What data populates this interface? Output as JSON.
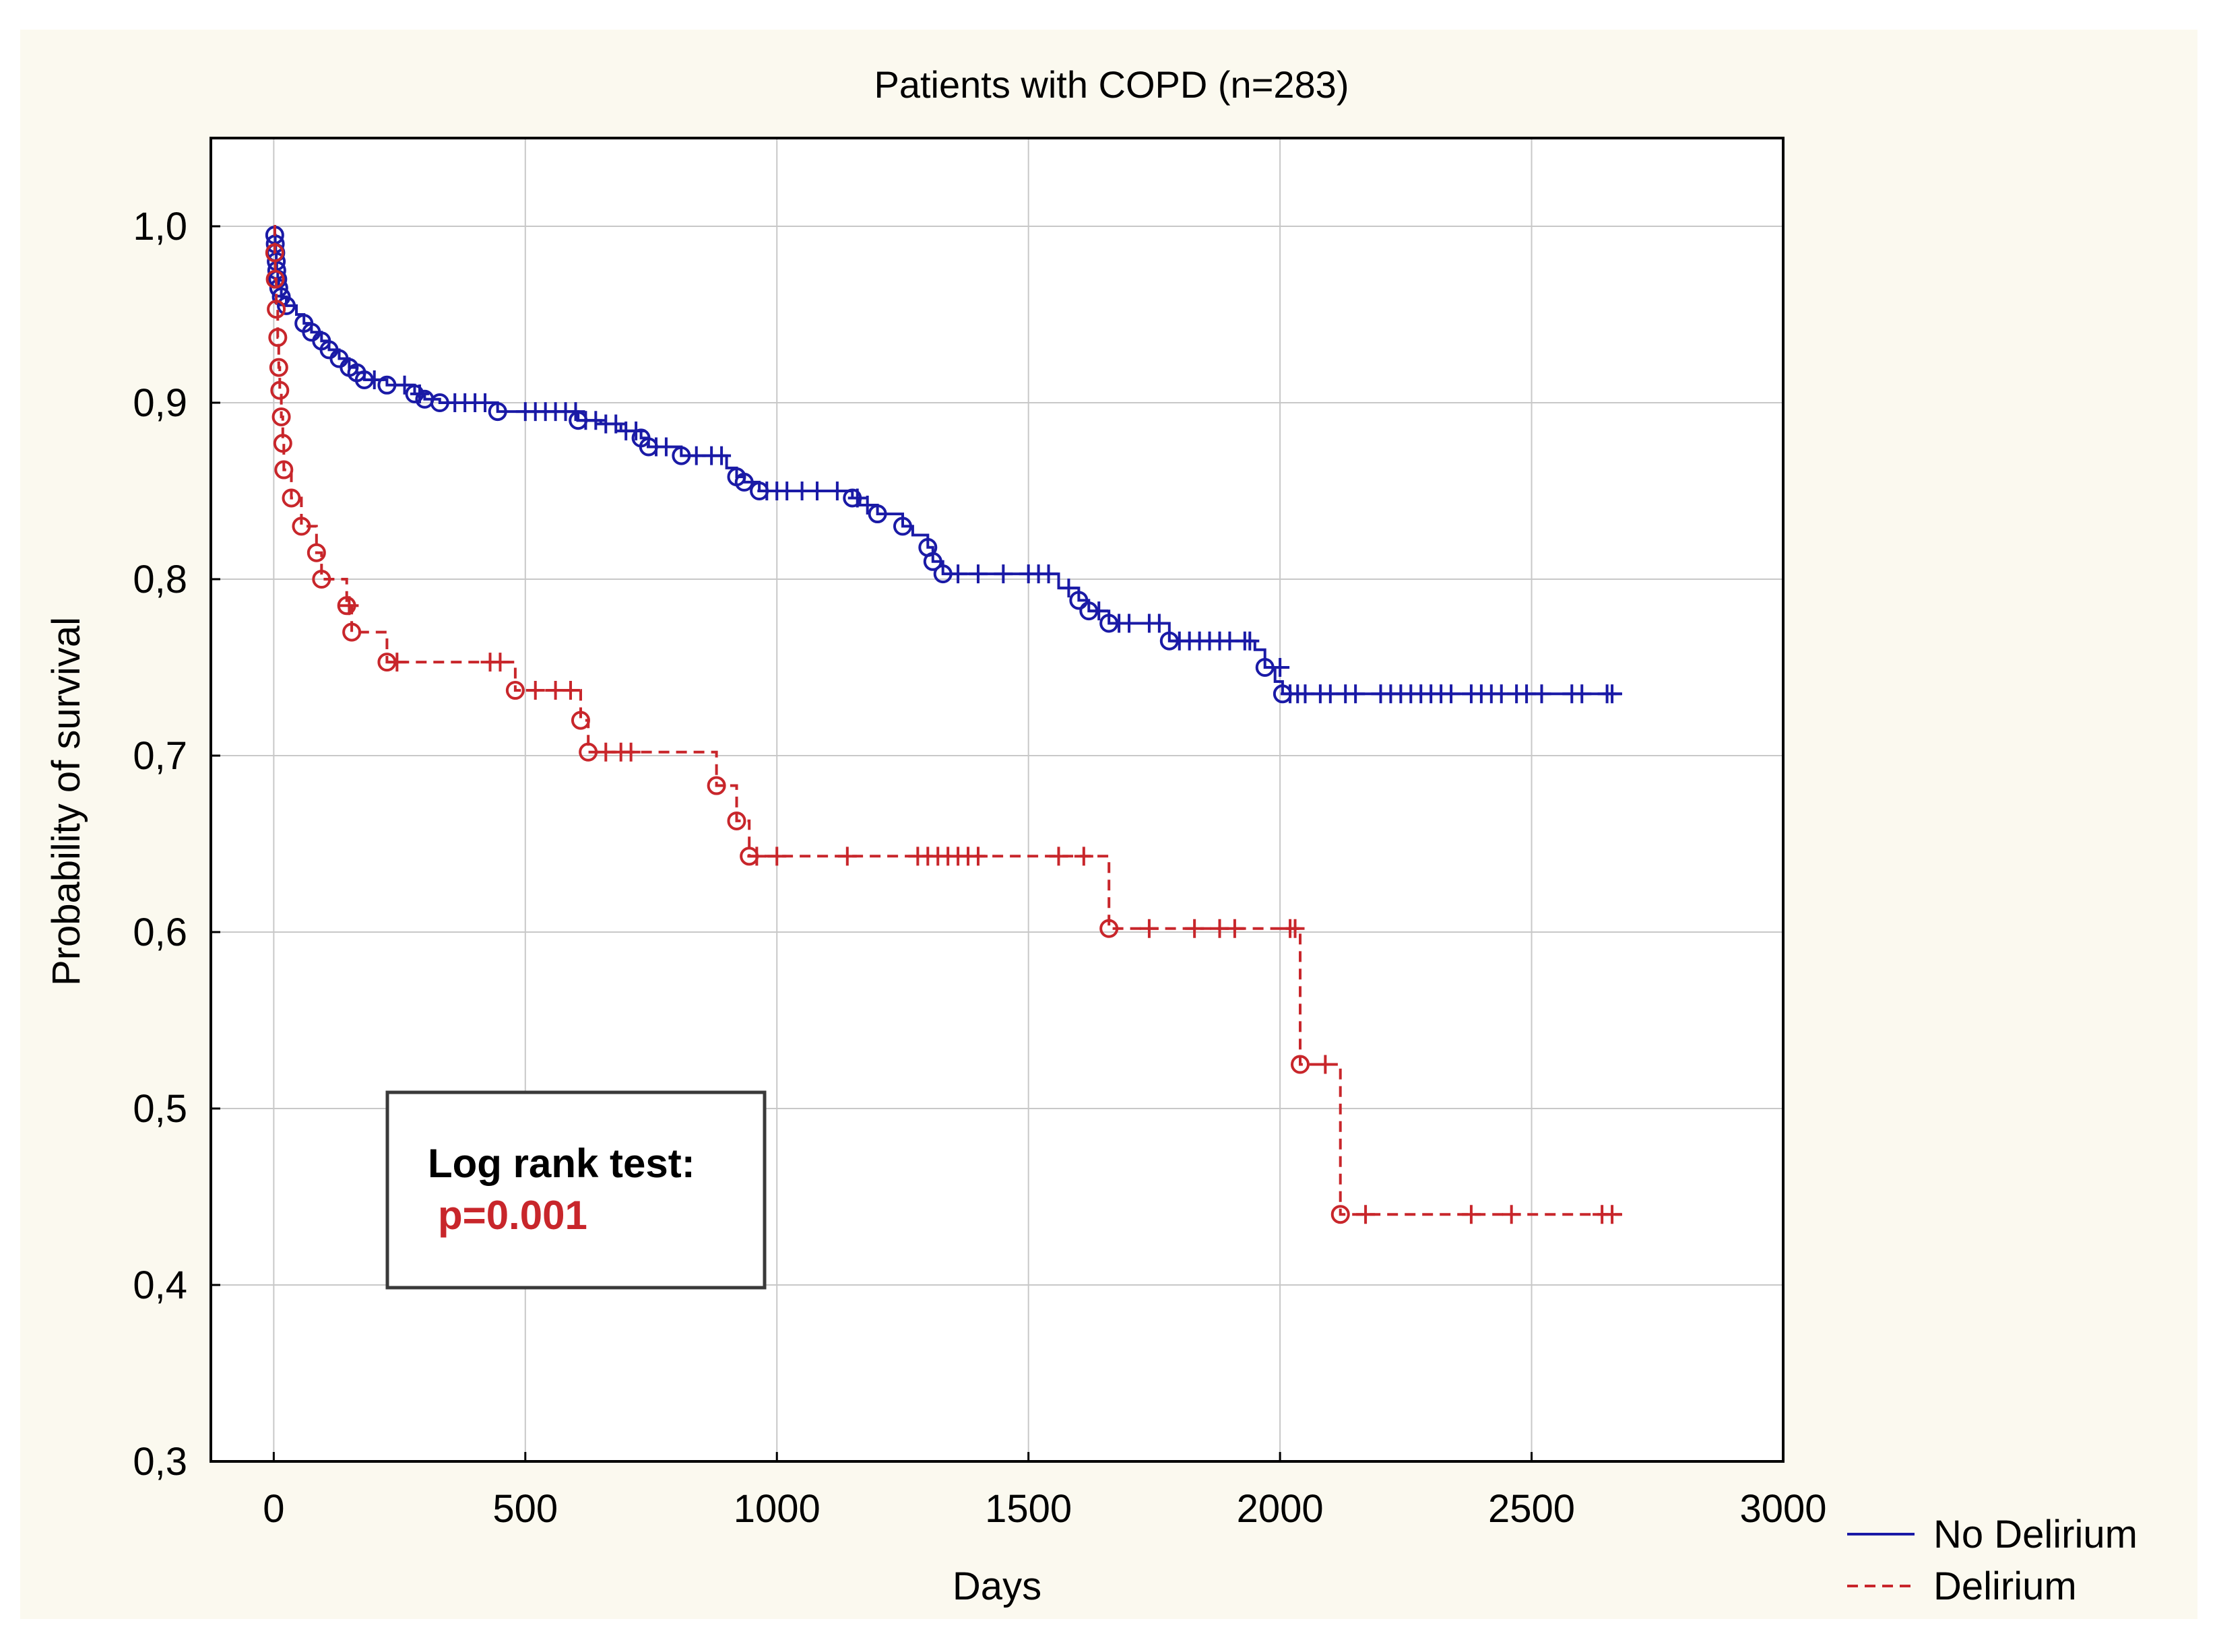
{
  "colors": {
    "outer_background": "#fbf9ef",
    "plot_background": "#ffffff",
    "grid": "#c8c8c8",
    "axis": "#000000",
    "no_delirium": "#1a1aa6",
    "delirium": "#c8262b",
    "pvalue": "#c8262b"
  },
  "chart_data": {
    "type": "line",
    "subtype": "kaplan-meier",
    "title": "Patients with COPD (n=283)",
    "xlabel": "Days",
    "ylabel": "Probability of survival",
    "xlim": [
      -125,
      3000
    ],
    "ylim": [
      0.3,
      1.05
    ],
    "xticks": [
      0,
      500,
      1000,
      1500,
      2000,
      2500,
      3000
    ],
    "xtick_labels": [
      "0",
      "500",
      "1000",
      "1500",
      "2000",
      "2500",
      "3000"
    ],
    "yticks": [
      0.3,
      0.4,
      0.5,
      0.6,
      0.7,
      0.8,
      0.9,
      1.0
    ],
    "ytick_labels": [
      "0,3",
      "0,4",
      "0,5",
      "0,6",
      "0,7",
      "0,8",
      "0,9",
      "1,0"
    ],
    "grid": true,
    "legend_position": "bottom-right outside",
    "annotation": {
      "heading": "Log rank test:",
      "pvalue": "p=0.001"
    },
    "series": [
      {
        "name": "No Delirium",
        "style": "solid",
        "steps": [
          [
            0,
            1.0
          ],
          [
            2,
            0.995
          ],
          [
            3,
            0.99
          ],
          [
            4,
            0.985
          ],
          [
            5,
            0.98
          ],
          [
            6,
            0.975
          ],
          [
            8,
            0.97
          ],
          [
            10,
            0.965
          ],
          [
            15,
            0.96
          ],
          [
            25,
            0.955
          ],
          [
            45,
            0.95
          ],
          [
            60,
            0.945
          ],
          [
            75,
            0.94
          ],
          [
            95,
            0.935
          ],
          [
            110,
            0.93
          ],
          [
            130,
            0.925
          ],
          [
            150,
            0.92
          ],
          [
            165,
            0.917
          ],
          [
            180,
            0.913
          ],
          [
            225,
            0.91
          ],
          [
            280,
            0.905
          ],
          [
            300,
            0.902
          ],
          [
            330,
            0.9
          ],
          [
            445,
            0.895
          ],
          [
            605,
            0.89
          ],
          [
            650,
            0.888
          ],
          [
            690,
            0.884
          ],
          [
            730,
            0.88
          ],
          [
            745,
            0.875
          ],
          [
            810,
            0.87
          ],
          [
            900,
            0.863
          ],
          [
            920,
            0.858
          ],
          [
            935,
            0.855
          ],
          [
            965,
            0.85
          ],
          [
            1150,
            0.846
          ],
          [
            1165,
            0.842
          ],
          [
            1200,
            0.837
          ],
          [
            1250,
            0.83
          ],
          [
            1270,
            0.825
          ],
          [
            1300,
            0.818
          ],
          [
            1310,
            0.81
          ],
          [
            1330,
            0.803
          ],
          [
            1560,
            0.795
          ],
          [
            1600,
            0.788
          ],
          [
            1620,
            0.782
          ],
          [
            1660,
            0.775
          ],
          [
            1780,
            0.765
          ],
          [
            1950,
            0.76
          ],
          [
            1970,
            0.75
          ],
          [
            1990,
            0.742
          ],
          [
            2005,
            0.735
          ],
          [
            2680,
            0.735
          ]
        ],
        "event_markers": [
          [
            2,
            0.995
          ],
          [
            3,
            0.99
          ],
          [
            4,
            0.985
          ],
          [
            5,
            0.98
          ],
          [
            6,
            0.975
          ],
          [
            8,
            0.97
          ],
          [
            10,
            0.965
          ],
          [
            15,
            0.96
          ],
          [
            25,
            0.955
          ],
          [
            60,
            0.945
          ],
          [
            75,
            0.94
          ],
          [
            95,
            0.935
          ],
          [
            110,
            0.93
          ],
          [
            130,
            0.925
          ],
          [
            150,
            0.92
          ],
          [
            165,
            0.917
          ],
          [
            180,
            0.913
          ],
          [
            225,
            0.91
          ],
          [
            280,
            0.905
          ],
          [
            300,
            0.902
          ],
          [
            330,
            0.9
          ],
          [
            445,
            0.895
          ],
          [
            605,
            0.89
          ],
          [
            730,
            0.88
          ],
          [
            745,
            0.875
          ],
          [
            810,
            0.87
          ],
          [
            920,
            0.858
          ],
          [
            935,
            0.855
          ],
          [
            965,
            0.85
          ],
          [
            1150,
            0.846
          ],
          [
            1200,
            0.837
          ],
          [
            1250,
            0.83
          ],
          [
            1300,
            0.818
          ],
          [
            1310,
            0.81
          ],
          [
            1330,
            0.803
          ],
          [
            1600,
            0.788
          ],
          [
            1620,
            0.782
          ],
          [
            1660,
            0.775
          ],
          [
            1780,
            0.765
          ],
          [
            1970,
            0.75
          ],
          [
            2005,
            0.735
          ]
        ],
        "censored": [
          [
            200,
            0.913
          ],
          [
            260,
            0.91
          ],
          [
            290,
            0.905
          ],
          [
            360,
            0.9
          ],
          [
            380,
            0.9
          ],
          [
            400,
            0.9
          ],
          [
            420,
            0.9
          ],
          [
            500,
            0.895
          ],
          [
            520,
            0.895
          ],
          [
            540,
            0.895
          ],
          [
            560,
            0.895
          ],
          [
            580,
            0.895
          ],
          [
            600,
            0.895
          ],
          [
            620,
            0.89
          ],
          [
            640,
            0.89
          ],
          [
            660,
            0.888
          ],
          [
            680,
            0.888
          ],
          [
            700,
            0.884
          ],
          [
            720,
            0.884
          ],
          [
            760,
            0.875
          ],
          [
            780,
            0.875
          ],
          [
            840,
            0.87
          ],
          [
            870,
            0.87
          ],
          [
            890,
            0.87
          ],
          [
            980,
            0.85
          ],
          [
            1000,
            0.85
          ],
          [
            1020,
            0.85
          ],
          [
            1050,
            0.85
          ],
          [
            1080,
            0.85
          ],
          [
            1120,
            0.85
          ],
          [
            1160,
            0.846
          ],
          [
            1180,
            0.842
          ],
          [
            1360,
            0.803
          ],
          [
            1400,
            0.803
          ],
          [
            1450,
            0.803
          ],
          [
            1500,
            0.803
          ],
          [
            1520,
            0.803
          ],
          [
            1540,
            0.803
          ],
          [
            1580,
            0.795
          ],
          [
            1640,
            0.782
          ],
          [
            1680,
            0.775
          ],
          [
            1700,
            0.775
          ],
          [
            1740,
            0.775
          ],
          [
            1760,
            0.775
          ],
          [
            1800,
            0.765
          ],
          [
            1820,
            0.765
          ],
          [
            1840,
            0.765
          ],
          [
            1860,
            0.765
          ],
          [
            1880,
            0.765
          ],
          [
            1900,
            0.765
          ],
          [
            1930,
            0.765
          ],
          [
            1940,
            0.765
          ],
          [
            2000,
            0.75
          ],
          [
            2020,
            0.735
          ],
          [
            2035,
            0.735
          ],
          [
            2050,
            0.735
          ],
          [
            2080,
            0.735
          ],
          [
            2100,
            0.735
          ],
          [
            2130,
            0.735
          ],
          [
            2150,
            0.735
          ],
          [
            2200,
            0.735
          ],
          [
            2220,
            0.735
          ],
          [
            2240,
            0.735
          ],
          [
            2260,
            0.735
          ],
          [
            2280,
            0.735
          ],
          [
            2300,
            0.735
          ],
          [
            2320,
            0.735
          ],
          [
            2340,
            0.735
          ],
          [
            2380,
            0.735
          ],
          [
            2400,
            0.735
          ],
          [
            2420,
            0.735
          ],
          [
            2440,
            0.735
          ],
          [
            2470,
            0.735
          ],
          [
            2490,
            0.735
          ],
          [
            2520,
            0.735
          ],
          [
            2580,
            0.735
          ],
          [
            2600,
            0.735
          ],
          [
            2650,
            0.735
          ],
          [
            2660,
            0.735
          ]
        ]
      },
      {
        "name": "Delirium",
        "style": "dashed",
        "steps": [
          [
            0,
            1.0
          ],
          [
            2,
            0.985
          ],
          [
            3,
            0.97
          ],
          [
            5,
            0.953
          ],
          [
            8,
            0.937
          ],
          [
            10,
            0.92
          ],
          [
            12,
            0.907
          ],
          [
            15,
            0.892
          ],
          [
            18,
            0.877
          ],
          [
            20,
            0.862
          ],
          [
            35,
            0.846
          ],
          [
            55,
            0.83
          ],
          [
            85,
            0.815
          ],
          [
            95,
            0.8
          ],
          [
            145,
            0.785
          ],
          [
            155,
            0.77
          ],
          [
            225,
            0.753
          ],
          [
            480,
            0.737
          ],
          [
            610,
            0.72
          ],
          [
            625,
            0.702
          ],
          [
            880,
            0.683
          ],
          [
            920,
            0.663
          ],
          [
            945,
            0.643
          ],
          [
            1660,
            0.602
          ],
          [
            2040,
            0.525
          ],
          [
            2120,
            0.44
          ],
          [
            2680,
            0.44
          ]
        ],
        "event_markers": [
          [
            2,
            0.985
          ],
          [
            3,
            0.97
          ],
          [
            5,
            0.953
          ],
          [
            8,
            0.937
          ],
          [
            10,
            0.92
          ],
          [
            12,
            0.907
          ],
          [
            15,
            0.892
          ],
          [
            18,
            0.877
          ],
          [
            20,
            0.862
          ],
          [
            35,
            0.846
          ],
          [
            55,
            0.83
          ],
          [
            85,
            0.815
          ],
          [
            95,
            0.8
          ],
          [
            145,
            0.785
          ],
          [
            155,
            0.77
          ],
          [
            225,
            0.753
          ],
          [
            480,
            0.737
          ],
          [
            610,
            0.72
          ],
          [
            625,
            0.702
          ],
          [
            880,
            0.683
          ],
          [
            920,
            0.663
          ],
          [
            945,
            0.643
          ],
          [
            1660,
            0.602
          ],
          [
            2040,
            0.525
          ],
          [
            2120,
            0.44
          ]
        ],
        "censored": [
          [
            150,
            0.785
          ],
          [
            245,
            0.753
          ],
          [
            430,
            0.753
          ],
          [
            450,
            0.753
          ],
          [
            520,
            0.737
          ],
          [
            560,
            0.737
          ],
          [
            590,
            0.737
          ],
          [
            660,
            0.702
          ],
          [
            690,
            0.702
          ],
          [
            710,
            0.702
          ],
          [
            960,
            0.643
          ],
          [
            1000,
            0.643
          ],
          [
            1140,
            0.643
          ],
          [
            1280,
            0.643
          ],
          [
            1300,
            0.643
          ],
          [
            1320,
            0.643
          ],
          [
            1340,
            0.643
          ],
          [
            1360,
            0.643
          ],
          [
            1380,
            0.643
          ],
          [
            1400,
            0.643
          ],
          [
            1560,
            0.643
          ],
          [
            1610,
            0.643
          ],
          [
            1740,
            0.602
          ],
          [
            1830,
            0.602
          ],
          [
            1880,
            0.602
          ],
          [
            1910,
            0.602
          ],
          [
            2020,
            0.602
          ],
          [
            2030,
            0.602
          ],
          [
            2090,
            0.525
          ],
          [
            2170,
            0.44
          ],
          [
            2380,
            0.44
          ],
          [
            2460,
            0.44
          ],
          [
            2640,
            0.44
          ],
          [
            2660,
            0.44
          ]
        ]
      }
    ]
  }
}
